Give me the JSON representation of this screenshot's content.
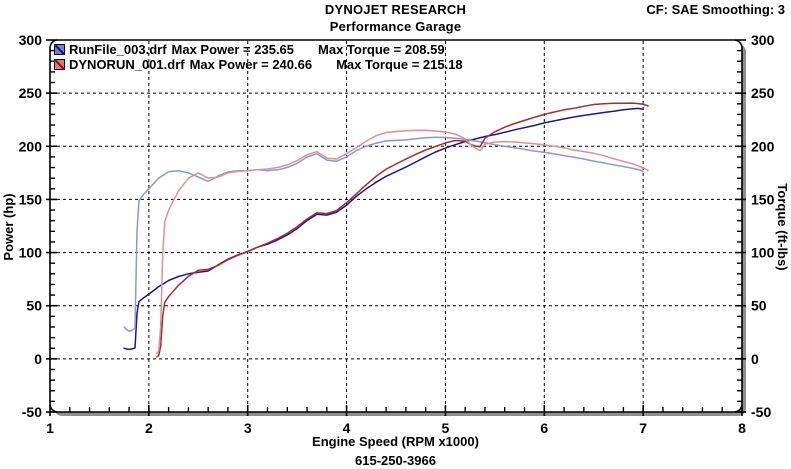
{
  "header": {
    "title": "DYNOJET RESEARCH",
    "subtitle": "Performance Garage",
    "cf_smoothing": "CF: SAE  Smoothing: 3"
  },
  "footer": {
    "phone": "615-250-3966"
  },
  "legend": {
    "entries": [
      {
        "file": "RunFile_003.drf",
        "power_label": "Max Power = 235.65",
        "torque_label": "Max Torque = 208.59",
        "marker_fill": "#7a7ae0",
        "marker_stroke": "#16167e"
      },
      {
        "file": "DYNORUN_001.drf",
        "power_label": "Max Power = 240.66",
        "torque_label": "Max Torque = 215.18",
        "marker_fill": "#e07a7a",
        "marker_stroke": "#7e1616"
      }
    ]
  },
  "chart_data": {
    "type": "line",
    "title": "DYNOJET RESEARCH",
    "subtitle": "Performance Garage",
    "xlabel": "Engine Speed (RPM x1000)",
    "ylabel_left": "Power (hp)",
    "ylabel_right": "Torque (ft-lbs)",
    "xlim": [
      1,
      8
    ],
    "ylim": [
      -50,
      300
    ],
    "x_ticks": [
      1,
      2,
      3,
      4,
      5,
      6,
      7,
      8
    ],
    "y_ticks": [
      300,
      250,
      200,
      150,
      100,
      50,
      0,
      -50
    ],
    "x_minor_step": 0.2,
    "y_minor_step": 10,
    "grid": "black dashed lines at major ticks, both axes",
    "legend_position": "top-left inside plot",
    "frame": {
      "stroke": "#000000",
      "fill": "#ffffff",
      "shadow": "#8f8f8f",
      "corner_radius": 8
    },
    "series": [
      {
        "name": "RunFile_003.drf Power (hp)",
        "slug": "run1-power",
        "color": "#1a1a8e",
        "max": 235.65,
        "x": [
          1.75,
          1.78,
          1.8,
          1.83,
          1.86,
          1.88,
          1.9,
          1.95,
          2.0,
          2.1,
          2.2,
          2.3,
          2.4,
          2.5,
          2.6,
          2.7,
          2.8,
          2.9,
          3.0,
          3.1,
          3.2,
          3.3,
          3.4,
          3.5,
          3.6,
          3.7,
          3.8,
          3.9,
          4.0,
          4.1,
          4.2,
          4.3,
          4.4,
          4.5,
          4.6,
          4.7,
          4.8,
          4.9,
          5.0,
          5.1,
          5.2,
          5.3,
          5.4,
          5.5,
          5.6,
          5.7,
          5.8,
          5.9,
          6.0,
          6.1,
          6.2,
          6.3,
          6.4,
          6.5,
          6.6,
          6.7,
          6.8,
          6.9,
          6.95,
          7.0
        ],
        "y": [
          10,
          9.2,
          8.9,
          9.4,
          10.2,
          42.9,
          53.9,
          57.6,
          60.9,
          68.0,
          73.7,
          77.5,
          80.0,
          81.4,
          82.7,
          88.4,
          93.8,
          97.7,
          101.1,
          105.1,
          107.9,
          111.8,
          116.5,
          122.6,
          130.2,
          136.0,
          135.3,
          138.1,
          144.7,
          153.0,
          160.0,
          166.2,
          171.8,
          176.1,
          180.4,
          185.2,
          190.1,
          194.6,
          198.3,
          201.5,
          204.5,
          206.9,
          209.2,
          211.0,
          213.2,
          215.5,
          217.6,
          219.6,
          222.0,
          223.9,
          225.8,
          227.6,
          229.1,
          230.4,
          231.8,
          233.0,
          234.3,
          235.3,
          235.65,
          234.8
        ]
      },
      {
        "name": "RunFile_003.drf Torque (ft-lbs)",
        "slug": "run1-torque",
        "color": "#8e96d2",
        "max": 208.59,
        "x": [
          1.75,
          1.78,
          1.8,
          1.83,
          1.86,
          1.88,
          1.9,
          1.95,
          2.0,
          2.1,
          2.2,
          2.3,
          2.4,
          2.5,
          2.6,
          2.7,
          2.8,
          2.9,
          3.0,
          3.1,
          3.2,
          3.3,
          3.4,
          3.5,
          3.6,
          3.7,
          3.8,
          3.9,
          4.0,
          4.1,
          4.2,
          4.3,
          4.4,
          4.5,
          4.6,
          4.7,
          4.8,
          4.9,
          5.0,
          5.1,
          5.2,
          5.3,
          5.4,
          5.5,
          5.6,
          5.7,
          5.8,
          5.9,
          6.0,
          6.1,
          6.2,
          6.3,
          6.4,
          6.5,
          6.6,
          6.7,
          6.8,
          6.9,
          6.95,
          7.0
        ],
        "y": [
          30.0,
          27.1,
          26.0,
          27.0,
          28.8,
          119.9,
          149.0,
          155.1,
          160.0,
          170.1,
          176.0,
          177.0,
          175.1,
          171.0,
          167.0,
          172.0,
          175.9,
          176.9,
          177.0,
          178.1,
          177.1,
          177.9,
          180.0,
          184.0,
          189.9,
          193.0,
          187.0,
          186.0,
          190.0,
          196.0,
          200.1,
          203.0,
          205.1,
          205.5,
          206.0,
          207.0,
          208.0,
          208.59,
          208.3,
          207.5,
          206.5,
          205.0,
          203.5,
          201.5,
          200.0,
          198.6,
          197.1,
          195.5,
          194.3,
          192.8,
          191.2,
          189.7,
          188.0,
          186.1,
          184.4,
          182.6,
          181.0,
          179.1,
          178.1,
          176.2
        ]
      },
      {
        "name": "DYNORUN_001.drf Power (hp)",
        "slug": "run2-power",
        "color": "#a82c2c",
        "max": 240.66,
        "x": [
          2.08,
          2.1,
          2.12,
          2.14,
          2.16,
          2.2,
          2.3,
          2.4,
          2.5,
          2.6,
          2.7,
          2.8,
          2.9,
          3.0,
          3.1,
          3.2,
          3.3,
          3.4,
          3.5,
          3.6,
          3.7,
          3.8,
          3.9,
          4.0,
          4.1,
          4.2,
          4.3,
          4.4,
          4.5,
          4.6,
          4.7,
          4.8,
          4.9,
          5.0,
          5.1,
          5.2,
          5.25,
          5.3,
          5.35,
          5.4,
          5.5,
          5.6,
          5.7,
          5.8,
          5.9,
          6.0,
          6.1,
          6.2,
          6.3,
          6.4,
          6.5,
          6.6,
          6.7,
          6.8,
          6.9,
          6.95,
          7.0,
          7.05
        ],
        "y": [
          2.0,
          3.0,
          12.1,
          39.9,
          53.0,
          58.6,
          69.2,
          77.7,
          83.3,
          84.2,
          87.9,
          93.3,
          97.4,
          101.1,
          105.1,
          108.8,
          113.1,
          118.1,
          124.3,
          131.6,
          137.4,
          136.7,
          139.6,
          147.0,
          155.3,
          163.9,
          171.9,
          178.4,
          183.3,
          187.9,
          192.5,
          196.5,
          199.9,
          203.2,
          205.4,
          204.9,
          202.0,
          200.3,
          199.5,
          207.7,
          213.6,
          218.0,
          221.4,
          224.4,
          227.3,
          230.0,
          232.3,
          234.3,
          235.7,
          237.6,
          239.3,
          240.1,
          240.4,
          240.55,
          240.66,
          240.2,
          239.5,
          238.0
        ]
      },
      {
        "name": "DYNORUN_001.drf Torque (ft-lbs)",
        "slug": "run2-torque",
        "color": "#d89494",
        "max": 215.18,
        "x": [
          2.08,
          2.1,
          2.12,
          2.14,
          2.16,
          2.2,
          2.3,
          2.4,
          2.5,
          2.6,
          2.7,
          2.8,
          2.9,
          3.0,
          3.1,
          3.2,
          3.3,
          3.4,
          3.5,
          3.6,
          3.7,
          3.8,
          3.9,
          4.0,
          4.1,
          4.2,
          4.3,
          4.4,
          4.5,
          4.6,
          4.7,
          4.8,
          4.9,
          5.0,
          5.1,
          5.2,
          5.25,
          5.3,
          5.35,
          5.4,
          5.5,
          5.6,
          5.7,
          5.8,
          5.9,
          6.0,
          6.1,
          6.2,
          6.3,
          6.4,
          6.5,
          6.6,
          6.7,
          6.8,
          6.9,
          6.95,
          7.0,
          7.05
        ],
        "y": [
          5.1,
          7.5,
          30.0,
          97.9,
          128.9,
          139.9,
          158.0,
          170.0,
          175.0,
          170.1,
          171.0,
          175.0,
          176.4,
          177.0,
          178.1,
          178.6,
          180.0,
          182.4,
          186.5,
          192.0,
          195.0,
          188.9,
          188.0,
          193.0,
          198.9,
          204.9,
          210.0,
          213.0,
          213.9,
          214.5,
          215.18,
          215.0,
          214.3,
          213.4,
          211.5,
          207.0,
          202.1,
          198.5,
          195.9,
          202.0,
          204.0,
          204.4,
          204.0,
          203.2,
          202.3,
          201.3,
          200.0,
          198.5,
          196.5,
          195.0,
          193.4,
          191.1,
          188.4,
          185.8,
          183.2,
          181.5,
          179.7,
          177.3
        ]
      }
    ]
  }
}
